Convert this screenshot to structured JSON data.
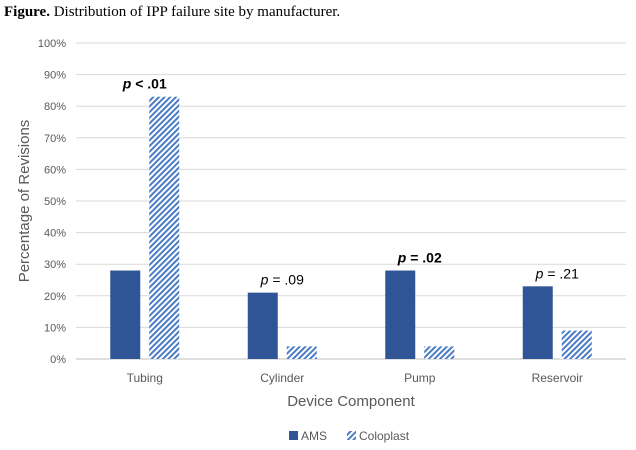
{
  "caption": {
    "label": "Figure.",
    "text": " Distribution of IPP failure site by manufacturer."
  },
  "chart_data": {
    "type": "bar",
    "categories": [
      "Tubing",
      "Cylinder",
      "Pump",
      "Reservoir"
    ],
    "series": [
      {
        "name": "AMS",
        "values": [
          28,
          21,
          28,
          23
        ],
        "color": "#2F5597",
        "pattern": "solid"
      },
      {
        "name": "Coloplast",
        "values": [
          83,
          4,
          4,
          9
        ],
        "color": "#4A7CC7",
        "pattern": "diagonal-hatch"
      }
    ],
    "ylabel": "Percentage of Revisions",
    "xlabel": "Device Component",
    "ylim": [
      0,
      100
    ],
    "yticks": [
      "0%",
      "10%",
      "20%",
      "30%",
      "40%",
      "50%",
      "60%",
      "70%",
      "80%",
      "90%",
      "100%"
    ],
    "gridlines": true,
    "legend_position": "bottom",
    "annotations": [
      {
        "category": "Tubing",
        "p": "p",
        "rest": " < .01",
        "bold": true
      },
      {
        "category": "Cylinder",
        "p": "p",
        "rest": " = .09",
        "bold": false
      },
      {
        "category": "Pump",
        "p": "p",
        "rest": " = .02",
        "bold": true
      },
      {
        "category": "Reservoir",
        "p": "p",
        "rest": " = .21",
        "bold": false
      }
    ]
  }
}
